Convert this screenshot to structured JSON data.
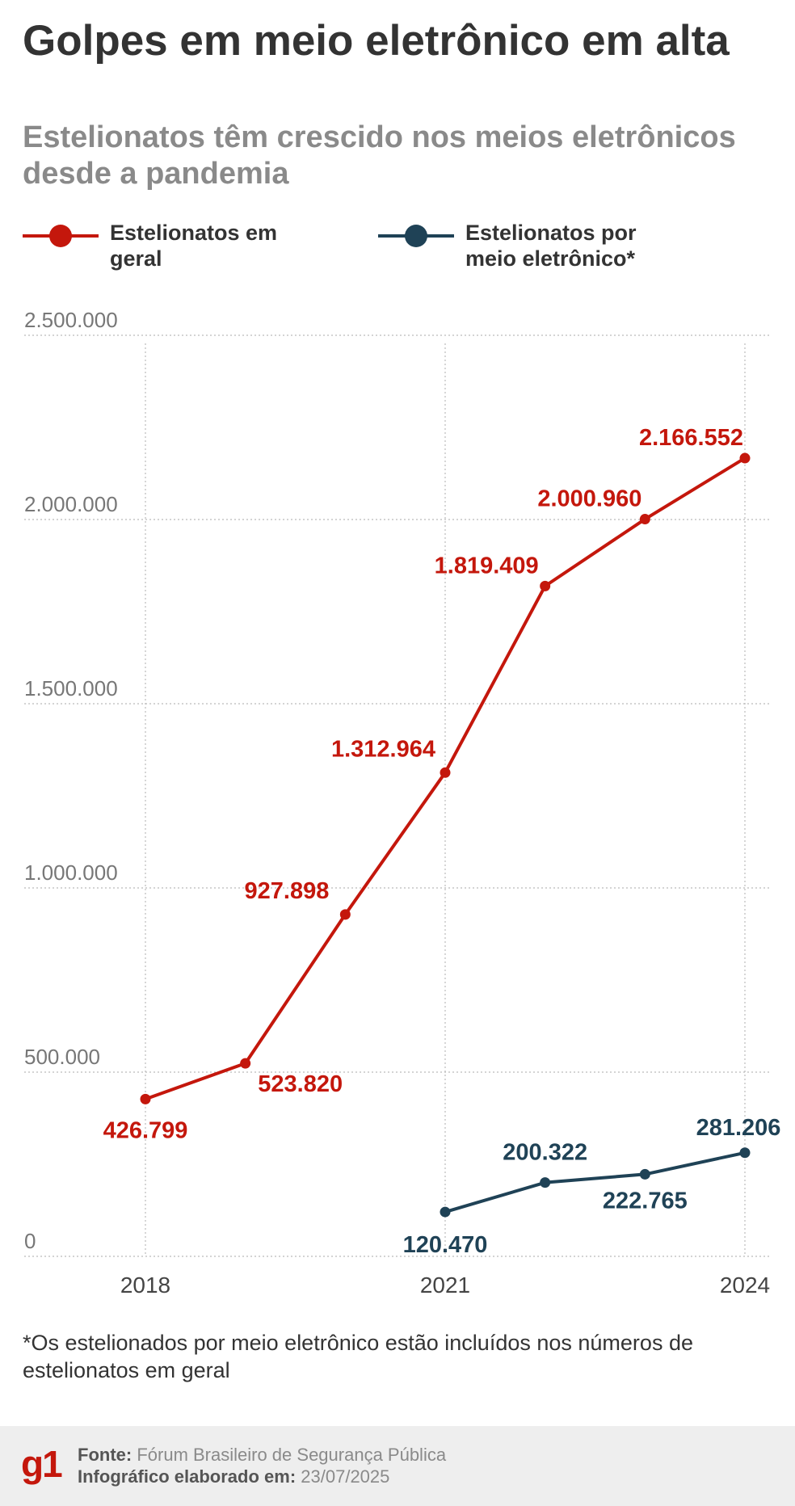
{
  "header": {
    "title": "Golpes em meio eletrônico em alta",
    "subtitle": "Estelionatos têm crescido nos meios eletrônicos desde a pandemia"
  },
  "legend": {
    "general": "Estelionatos em geral",
    "electronic": "Estelionatos por meio eletrônico*"
  },
  "chart_data": {
    "type": "line",
    "x": [
      2018,
      2019,
      2020,
      2021,
      2022,
      2023,
      2024
    ],
    "x_tick_labels": [
      "2018",
      "2021",
      "2024"
    ],
    "x_ticks": [
      2018,
      2021,
      2024
    ],
    "ylim": [
      0,
      2500000
    ],
    "y_ticks": [
      0,
      500000,
      1000000,
      1500000,
      2000000,
      2500000
    ],
    "y_tick_labels": [
      "0",
      "500.000",
      "1.000.000",
      "1.500.000",
      "2.000.000",
      "2.500.000"
    ],
    "grid": true,
    "legend_position": "top-left",
    "series": [
      {
        "name": "Estelionatos em geral",
        "color": "#c4170c",
        "x": [
          2018,
          2019,
          2020,
          2021,
          2022,
          2023,
          2024
        ],
        "values": [
          426799,
          523820,
          927898,
          1312964,
          1819409,
          2000960,
          2166552
        ],
        "labels": [
          "426.799",
          "523.820",
          "927.898",
          "1.312.964",
          "1.819.409",
          "2.000.960",
          "2.166.552"
        ]
      },
      {
        "name": "Estelionatos por meio eletrônico*",
        "color": "#1f4256",
        "x": [
          2021,
          2022,
          2023,
          2024
        ],
        "values": [
          120470,
          200322,
          222765,
          281206
        ],
        "labels": [
          "120.470",
          "200.322",
          "222.765",
          "281.206"
        ]
      }
    ]
  },
  "footnote": "*Os estelionados por meio eletrônico estão incluídos nos números de estelionatos em geral",
  "footer": {
    "logo": "g1",
    "source_label": "Fonte:",
    "source_value": "Fórum Brasileiro de Segurança Pública",
    "date_label": "Infográfico elaborado em:",
    "date_value": "23/07/2025"
  },
  "colors": {
    "general": "#c4170c",
    "electronic": "#1f4256",
    "grid": "#bbbbbb",
    "axis_text": "#777777"
  }
}
